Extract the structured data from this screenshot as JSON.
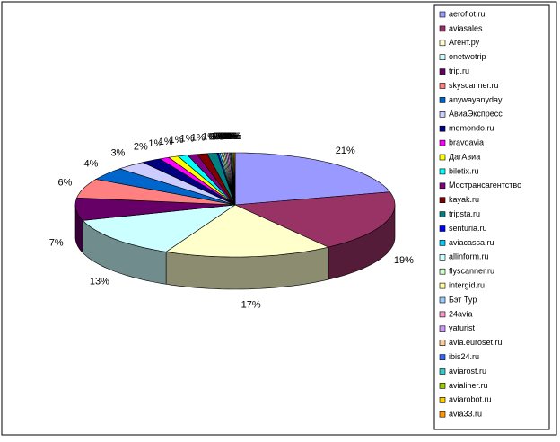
{
  "chart_data": {
    "type": "pie",
    "style": "3d",
    "categories": [
      "aeroflot.ru",
      "aviasales",
      "Агент.ру",
      "onetwotrip",
      "trip.ru",
      "skyscanner.ru",
      "anywayanyday",
      "АвиаЭкспресс",
      "momondo.ru",
      "bravoavia",
      "ДагАвиа",
      "biletix.ru",
      "Мострансагентство",
      "kayak.ru",
      "tripsta.ru",
      "senturia.ru",
      "aviacassa.ru",
      "allinform.ru",
      "flyscanner.ru",
      "intergid.ru",
      "Бэт Тур",
      "24avia",
      "yaturist",
      "avia.euroset.ru",
      "ibis24.ru",
      "aviarost.ru",
      "avialiner.ru",
      "aviarobot.ru",
      "avia33.ru"
    ],
    "values": [
      21,
      19,
      17,
      13,
      7,
      6,
      4,
      3,
      2,
      1,
      1,
      1,
      1,
      1,
      1,
      0.15,
      0.15,
      0.15,
      0.15,
      0.15,
      0.15,
      0.15,
      0.15,
      0.1,
      0.1,
      0.1,
      0.1,
      0.1,
      0.1
    ],
    "value_labels": [
      "21%",
      "19%",
      "17%",
      "13%",
      "7%",
      "6%",
      "4%",
      "3%",
      "2%",
      "1%",
      "1%",
      "1%",
      "1%",
      "1%",
      "1%",
      "0%",
      "0%",
      "0%",
      "0%",
      "0%",
      "0%",
      "0%",
      "0%",
      "0%",
      "0%",
      "0%",
      "0%",
      "0%",
      "0%"
    ],
    "colors": [
      "#9999FF",
      "#993366",
      "#FFFFCC",
      "#CCFFFF",
      "#660066",
      "#FF8080",
      "#0066CC",
      "#CCCCFF",
      "#000080",
      "#FF00FF",
      "#FFFF00",
      "#00FFFF",
      "#800080",
      "#800000",
      "#008080",
      "#0000FF",
      "#00CCFF",
      "#CCFFFF",
      "#CCFFCC",
      "#FFFF99",
      "#99CCFF",
      "#FF99CC",
      "#CC99FF",
      "#FFCC99",
      "#3366FF",
      "#33CCCC",
      "#99CC00",
      "#FFCC00",
      "#FF9900"
    ],
    "legend": "right"
  }
}
